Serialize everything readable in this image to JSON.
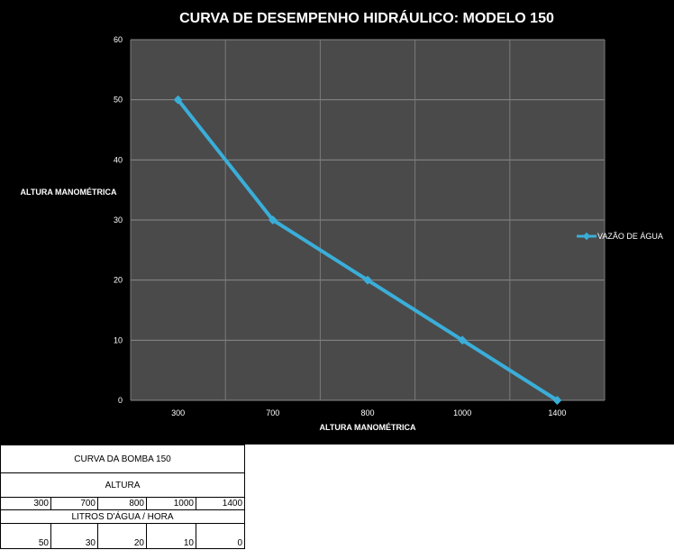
{
  "chart_data": {
    "type": "line",
    "title": "CURVA DE DESEMPENHO HIDRÁULICO: MODELO 150",
    "xlabel": "ALTURA MANOMÉTRICA",
    "ylabel": "ALTURA MANOMÉTRICA",
    "categories": [
      "300",
      "700",
      "800",
      "1000",
      "1400"
    ],
    "series": [
      {
        "name": "VAZÃO DE ÁGUA",
        "values": [
          50,
          30,
          20,
          10,
          0
        ],
        "color": "#3aaed8"
      }
    ],
    "yticks": [
      "0",
      "10",
      "20",
      "30",
      "40",
      "50",
      "60"
    ],
    "ylim": [
      0,
      60
    ],
    "grid": true,
    "legend": "right",
    "background": "#000000",
    "plot_background": "#4a4a4a"
  },
  "table": {
    "title": "CURVA DA BOMBA 150",
    "header1": "ALTURA",
    "row1": [
      "300",
      "700",
      "800",
      "1000",
      "1400"
    ],
    "header2": "LITROS D'ÁGUA / HORA",
    "row2": [
      "50",
      "30",
      "20",
      "10",
      "0"
    ]
  }
}
